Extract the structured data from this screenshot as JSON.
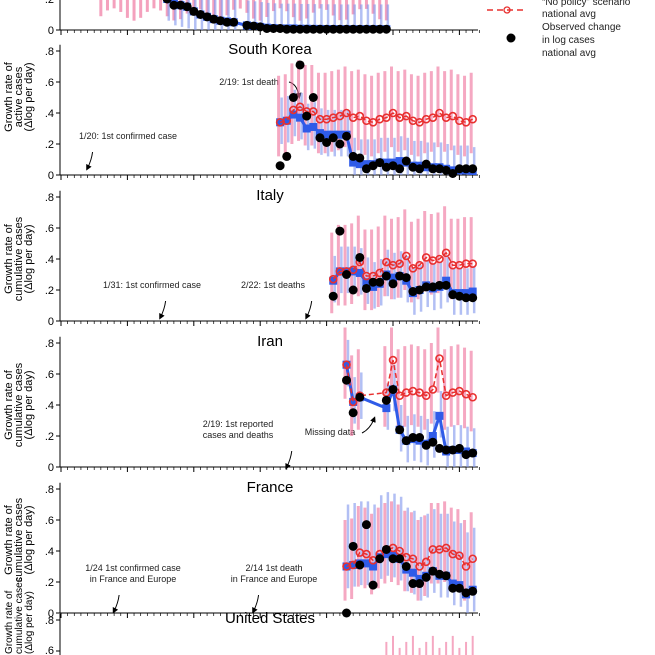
{
  "legend": {
    "no_policy_line1": "“No policy” scenario",
    "no_policy_line2": "national avg",
    "observed_line1": "Observed change",
    "observed_line2": "in log cases",
    "observed_line3": "national avg"
  },
  "colors": {
    "no_policy": "#e8302f",
    "no_policy_band": "#ef6f9a",
    "policy": "#2f5be8",
    "policy_band": "#7f95ee",
    "observed": "#000000"
  },
  "chart_data": [
    {
      "type": "line",
      "title": "",
      "ylabel": "",
      "yticks": [
        "0",
        ".2"
      ],
      "ylim_visible": [
        0,
        0.2
      ],
      "start": "2/1",
      "series": [
        {
          "key": "policy",
          "values": [
            0.2,
            0.17,
            0.16,
            0.15,
            0.12,
            0.1,
            0.085,
            0.07,
            0.06,
            0.055,
            0.05,
            null,
            0.03,
            0.025,
            0.02,
            0.015,
            0.012,
            0.01,
            0.01,
            0.01,
            0.008,
            0.008,
            0.007,
            0.007,
            0.006,
            0.006,
            0.005,
            0.005,
            0.005,
            0.005,
            0.005,
            0.005,
            0.005,
            0.005
          ]
        },
        {
          "key": "observed",
          "values": [
            0.2,
            0.16,
            0.16,
            0.15,
            0.12,
            0.1,
            0.085,
            0.07,
            0.06,
            0.05,
            0.05,
            null,
            0.03,
            0.025,
            0.02,
            0.01,
            0.01,
            0.01,
            0.005,
            0.005,
            0.005,
            0.005,
            0.005,
            0.005,
            0.005,
            0.005,
            0.005,
            0.005,
            0.005,
            0.005,
            0.005,
            0.005,
            0.005,
            0.005
          ]
        }
      ]
    },
    {
      "type": "line",
      "title": "South Korea",
      "ylabel": [
        "Growth rate of",
        "active cases",
        "(Δlog per day)"
      ],
      "yticks": [
        "0",
        ".2",
        ".4",
        ".6",
        ".8"
      ],
      "ylim": [
        0,
        0.8
      ],
      "start": "2/18",
      "annotations": [
        {
          "lines": [
            "1/20: 1st confirmed case"
          ],
          "date": "1/20"
        },
        {
          "lines": [
            "2/19: 1st death"
          ],
          "date": "2/19"
        }
      ],
      "series": [
        {
          "key": "no_policy",
          "values": [
            0.34,
            0.35,
            0.42,
            0.44,
            0.41,
            0.41,
            0.36,
            0.36,
            0.37,
            0.38,
            0.4,
            0.37,
            0.38,
            0.35,
            0.34,
            0.36,
            0.37,
            0.4,
            0.37,
            0.38,
            0.35,
            0.34,
            0.36,
            0.37,
            0.4,
            0.37,
            0.38,
            0.35,
            0.34,
            0.36
          ]
        },
        {
          "key": "policy",
          "values": [
            0.34,
            0.35,
            0.39,
            0.37,
            0.3,
            0.31,
            0.27,
            0.26,
            0.26,
            0.26,
            0.26,
            0.08,
            0.07,
            0.07,
            0.07,
            0.08,
            0.08,
            0.08,
            0.09,
            0.08,
            0.06,
            0.06,
            0.05,
            0.05,
            0.05,
            0.04,
            0.03,
            0.03,
            0.03,
            0.02
          ]
        },
        {
          "key": "observed",
          "values": [
            0.06,
            0.12,
            0.5,
            0.71,
            0.38,
            0.5,
            0.24,
            0.21,
            0.24,
            0.2,
            0.25,
            0.12,
            0.11,
            0.04,
            0.06,
            0.08,
            0.05,
            0.06,
            0.04,
            0.09,
            0.05,
            0.04,
            0.07,
            0.04,
            0.04,
            0.03,
            0.01,
            0.04,
            0.04,
            0.04
          ]
        }
      ]
    },
    {
      "type": "line",
      "title": "Italy",
      "ylabel": [
        "Growth rate of",
        "cumulative cases",
        "(Δlog per day)"
      ],
      "yticks": [
        "0",
        ".2",
        ".4",
        ".6",
        ".8"
      ],
      "ylim": [
        0,
        0.8
      ],
      "start": "2/26",
      "annotations": [
        {
          "lines": [
            "1/31: 1st confirmed case"
          ],
          "date": "1/31"
        },
        {
          "lines": [
            "2/22: 1st deaths"
          ],
          "date": "2/22"
        }
      ],
      "series": [
        {
          "key": "no_policy",
          "values": [
            0.27,
            0.32,
            0.32,
            0.33,
            0.38,
            0.29,
            0.29,
            0.31,
            0.38,
            0.36,
            0.37,
            0.42,
            0.34,
            0.36,
            0.41,
            0.39,
            0.4,
            0.44,
            0.36,
            0.36,
            0.37,
            0.37
          ]
        },
        {
          "key": "policy",
          "values": [
            0.26,
            0.32,
            0.32,
            0.32,
            0.31,
            0.25,
            0.22,
            0.24,
            0.3,
            0.28,
            0.29,
            0.26,
            0.18,
            0.2,
            0.23,
            0.21,
            0.22,
            0.26,
            0.18,
            0.18,
            0.18,
            0.19
          ]
        },
        {
          "key": "observed",
          "values": [
            0.16,
            0.58,
            0.3,
            0.2,
            0.41,
            0.21,
            0.25,
            0.25,
            0.29,
            0.24,
            0.29,
            0.28,
            0.19,
            0.2,
            0.22,
            0.22,
            0.23,
            0.23,
            0.17,
            0.16,
            0.15,
            0.15
          ]
        }
      ]
    },
    {
      "type": "line",
      "title": "Iran",
      "ylabel": [
        "Growth rate of",
        "cumulative cases",
        "(Δlog per day)"
      ],
      "yticks": [
        "0",
        ".2",
        ".4",
        ".6",
        ".8"
      ],
      "ylim": [
        0,
        0.8
      ],
      "start": "2/28",
      "annotations": [
        {
          "lines": [
            "2/19: 1st reported",
            "cases and deaths"
          ],
          "date": "2/19"
        },
        {
          "lines": [
            "Missing data"
          ],
          "date": "3/4"
        }
      ],
      "series": [
        {
          "key": "no_policy",
          "values": [
            0.66,
            0.42,
            0.46,
            null,
            null,
            null,
            0.48,
            0.69,
            0.46,
            0.48,
            0.49,
            0.48,
            0.46,
            0.5,
            0.7,
            0.46,
            0.48,
            0.49,
            0.47,
            0.45
          ]
        },
        {
          "key": "policy",
          "values": [
            0.66,
            0.42,
            0.45,
            null,
            null,
            null,
            0.38,
            0.5,
            0.24,
            0.17,
            0.18,
            0.17,
            0.15,
            0.2,
            0.33,
            0.1,
            0.11,
            0.11,
            0.1,
            0.09
          ]
        },
        {
          "key": "observed",
          "values": [
            0.56,
            0.35,
            0.45,
            null,
            null,
            null,
            0.43,
            0.5,
            0.24,
            0.17,
            0.19,
            0.19,
            0.14,
            0.16,
            0.12,
            0.11,
            0.11,
            0.12,
            0.08,
            0.09
          ]
        }
      ]
    },
    {
      "type": "line",
      "title": "France",
      "ylabel": [
        "Growth rate of",
        "cumulative cases",
        "(Δlog per day)"
      ],
      "yticks": [
        "0",
        ".2",
        ".4",
        ".6",
        ".8"
      ],
      "ylim": [
        0,
        0.8
      ],
      "start": "2/28",
      "annotations": [
        {
          "lines": [
            "1/24 1st confirmed case",
            "in France and Europe"
          ],
          "date": "1/24"
        },
        {
          "lines": [
            "2/14 1st death",
            "in France and Europe"
          ],
          "date": "2/14"
        }
      ],
      "series": [
        {
          "key": "no_policy",
          "values": [
            0.3,
            0.31,
            0.39,
            0.38,
            0.34,
            0.38,
            0.41,
            0.42,
            0.4,
            0.36,
            0.35,
            0.3,
            0.33,
            0.41,
            0.41,
            0.42,
            0.38,
            0.37,
            0.3,
            0.35
          ]
        },
        {
          "key": "policy",
          "values": [
            0.3,
            0.31,
            0.32,
            0.32,
            0.3,
            0.36,
            0.38,
            0.37,
            0.35,
            0.28,
            0.26,
            0.22,
            0.24,
            0.27,
            0.24,
            0.24,
            0.19,
            0.18,
            0.12,
            0.15
          ]
        },
        {
          "key": "observed",
          "values": [
            0.0,
            0.43,
            0.31,
            0.57,
            0.18,
            0.35,
            0.41,
            0.35,
            0.35,
            0.3,
            0.19,
            0.19,
            0.23,
            0.27,
            0.25,
            0.24,
            0.16,
            0.16,
            0.13,
            0.14
          ]
        }
      ]
    },
    {
      "type": "line",
      "title": "United States",
      "ylabel": [
        "Growth rate of",
        "cumulative cases",
        "(Δlog per day)"
      ],
      "yticks": [
        ".6",
        ".8"
      ],
      "ylim": [
        0,
        0.8
      ],
      "series": []
    }
  ]
}
